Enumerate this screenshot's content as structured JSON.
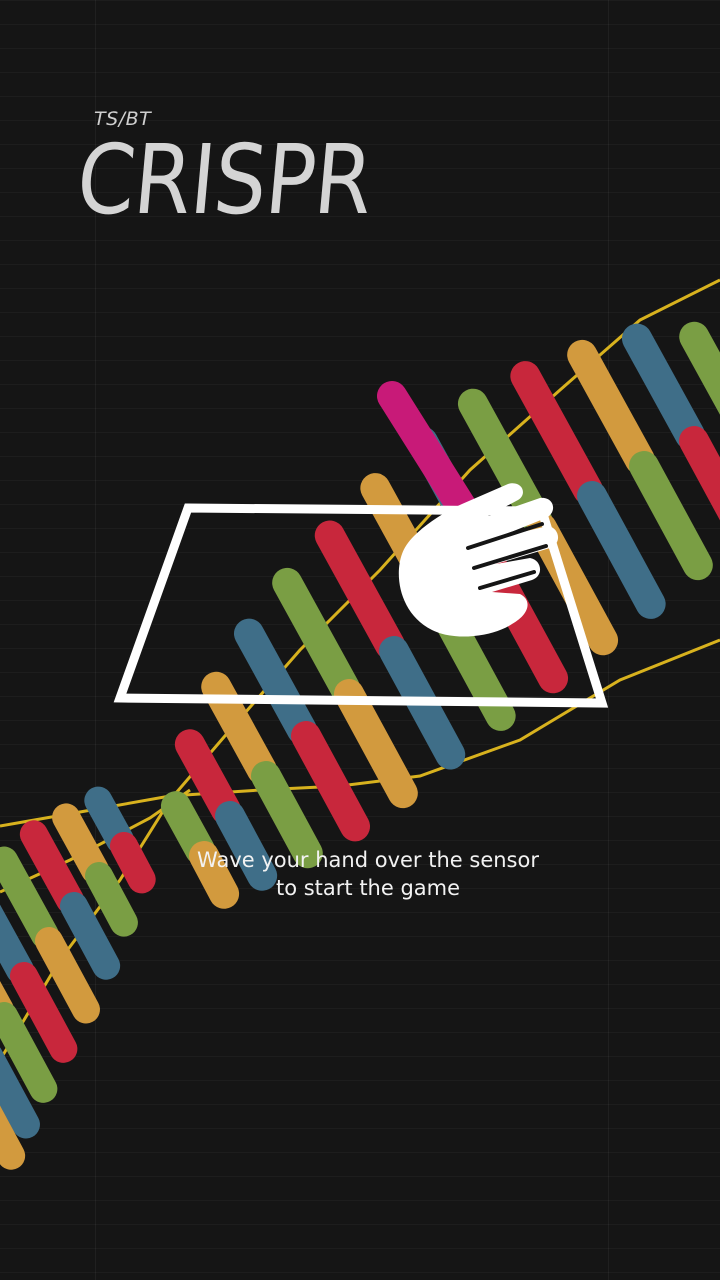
{
  "header": {
    "brand": "TS/BT",
    "title": "CRISPR"
  },
  "instruction": {
    "line1": "Wave your hand over the sensor",
    "line2": "to start the game"
  },
  "icons": {
    "sensor_pad": "sensor-pad-icon",
    "hand": "hand-icon"
  },
  "colors": {
    "background": "#151515",
    "title": "#d4d4d4",
    "strand": "#d8b21e",
    "base_green": "#7a9e44",
    "base_blue": "#3f6e88",
    "base_orange": "#d29a3e",
    "base_red": "#c8273c",
    "base_magenta": "#c81a78"
  }
}
